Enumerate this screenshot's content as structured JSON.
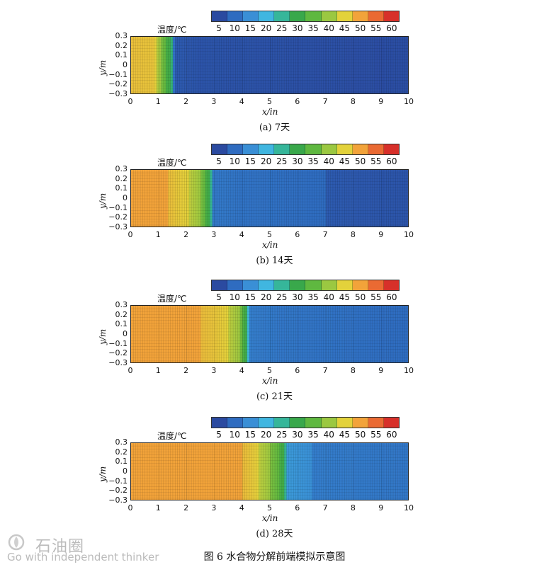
{
  "figure_title": "图 6   水合物分解前端模拟示意图",
  "watermark": {
    "name": "石油圈",
    "slogan": "Go with independent thinker",
    "color": "#bbbbbb"
  },
  "colorbar": {
    "label": "温度/℃",
    "ticks": [
      "5",
      "10",
      "15",
      "20",
      "25",
      "30",
      "35",
      "40",
      "45",
      "50",
      "55",
      "60"
    ],
    "colors": [
      "#2b4aa0",
      "#2f6cc0",
      "#3a8fd6",
      "#40b6e0",
      "#36b69a",
      "#39a84b",
      "#5fb840",
      "#9bc841",
      "#e3d23b",
      "#f2a33a",
      "#ea6a33",
      "#d7302a"
    ]
  },
  "axes": {
    "ylabel": "y/m",
    "xlabel": "x/in",
    "yticks": [
      "0.3",
      "0.2",
      "0.1",
      "0",
      "−0.1",
      "−0.2",
      "−0.3"
    ],
    "xticks": [
      "0",
      "1",
      "2",
      "3",
      "4",
      "5",
      "6",
      "7",
      "8",
      "9",
      "10"
    ]
  },
  "chart_data": [
    {
      "type": "heatmap",
      "caption": "(a) 7天",
      "xlim": [
        0,
        10
      ],
      "ylim": [
        -0.3,
        0.3
      ],
      "front_x": 1.5,
      "profile": [
        [
          0,
          49
        ],
        [
          0.8,
          48
        ],
        [
          1.0,
          42
        ],
        [
          1.3,
          33
        ],
        [
          1.45,
          31
        ],
        [
          1.55,
          10
        ],
        [
          2.5,
          8
        ],
        [
          10,
          6
        ]
      ]
    },
    {
      "type": "heatmap",
      "caption": "(b) 14天",
      "xlim": [
        0,
        10
      ],
      "ylim": [
        -0.3,
        0.3
      ],
      "front_x": 2.9,
      "profile": [
        [
          0,
          50
        ],
        [
          1.3,
          50
        ],
        [
          1.7,
          47
        ],
        [
          2.1,
          45
        ],
        [
          2.5,
          40
        ],
        [
          2.85,
          30
        ],
        [
          2.95,
          14
        ],
        [
          4.0,
          12
        ],
        [
          10,
          8
        ]
      ]
    },
    {
      "type": "heatmap",
      "caption": "(c) 21天",
      "xlim": [
        0,
        10
      ],
      "ylim": [
        -0.3,
        0.3
      ],
      "front_x": 4.2,
      "profile": [
        [
          0,
          50
        ],
        [
          2.5,
          50
        ],
        [
          3.0,
          48
        ],
        [
          3.5,
          45
        ],
        [
          3.9,
          40
        ],
        [
          4.15,
          31
        ],
        [
          4.25,
          15
        ],
        [
          5.5,
          13
        ],
        [
          10,
          10
        ]
      ]
    },
    {
      "type": "heatmap",
      "caption": "(d) 28天",
      "xlim": [
        0,
        10
      ],
      "ylim": [
        -0.3,
        0.3
      ],
      "front_x": 5.6,
      "profile": [
        [
          0,
          50
        ],
        [
          4.0,
          50
        ],
        [
          4.5,
          46
        ],
        [
          5.0,
          40
        ],
        [
          5.5,
          32
        ],
        [
          5.6,
          18
        ],
        [
          6.5,
          15
        ],
        [
          10,
          13
        ]
      ]
    }
  ]
}
